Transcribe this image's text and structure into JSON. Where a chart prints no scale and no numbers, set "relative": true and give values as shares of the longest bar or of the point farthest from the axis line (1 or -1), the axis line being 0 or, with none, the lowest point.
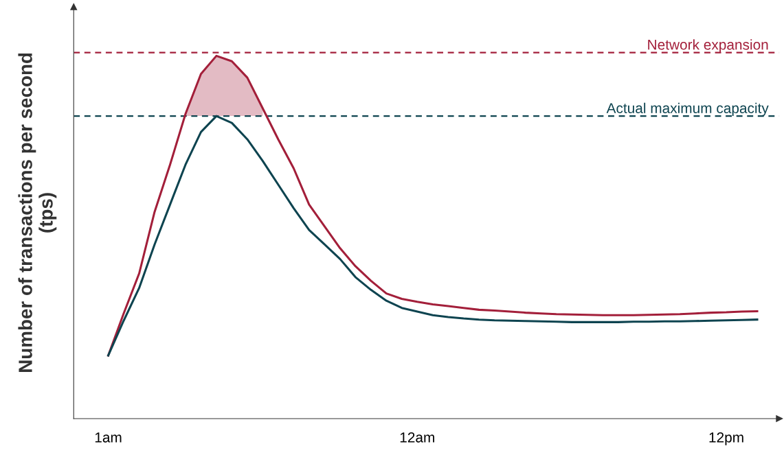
{
  "chart_data": {
    "type": "line",
    "relative": true,
    "ylabel": "Number of transactions per second\n(tps)",
    "categories": [
      "1am",
      null,
      null,
      null,
      null,
      null,
      null,
      null,
      null,
      null,
      null,
      null,
      null,
      null,
      null,
      null,
      null,
      null,
      null,
      null,
      "12am",
      null,
      null,
      null,
      null,
      null,
      null,
      null,
      null,
      null,
      null,
      null,
      null,
      null,
      null,
      null,
      null,
      null,
      null,
      null,
      "12pm",
      null,
      null
    ],
    "tick_labels": "x",
    "grid": false,
    "legend": false,
    "marker": "none",
    "line_style": "solid",
    "series": [
      {
        "color": "#a31f3a",
        "values": [
          0.174,
          0.29,
          0.4,
          0.57,
          0.7,
          0.84,
          0.95,
          1,
          0.985,
          0.94,
          0.855,
          0.77,
          0.69,
          0.59,
          0.53,
          0.47,
          0.42,
          0.38,
          0.345,
          0.33,
          0.322,
          0.315,
          0.31,
          0.305,
          0.3,
          0.298,
          0.295,
          0.292,
          0.29,
          0.288,
          0.287,
          0.286,
          0.285,
          0.285,
          0.285,
          0.286,
          0.287,
          0.288,
          0.29,
          0.292,
          0.293,
          0.295,
          0.296
        ],
        "lower": [
          null,
          null,
          null,
          null,
          null,
          0.834,
          0.834,
          0.834,
          0.834,
          0.834,
          0.834,
          null,
          null,
          null,
          null,
          null,
          null,
          null,
          null,
          null,
          null,
          null,
          null,
          null,
          null,
          null,
          null,
          null,
          null,
          null,
          null,
          null,
          null,
          null,
          null,
          null,
          null,
          null,
          null,
          null,
          null,
          null,
          null
        ],
        "upper": [
          null,
          null,
          null,
          null,
          null,
          0.84,
          0.95,
          1,
          0.985,
          0.94,
          0.855,
          null,
          null,
          null,
          null,
          null,
          null,
          null,
          null,
          null,
          null,
          null,
          null,
          null,
          null,
          null,
          null,
          null,
          null,
          null,
          null,
          null,
          null,
          null,
          null,
          null,
          null,
          null,
          null,
          null,
          null,
          null,
          null
        ]
      },
      {
        "color": "#0e4450",
        "values": [
          0.174,
          0.27,
          0.36,
          0.48,
          0.59,
          0.7,
          0.79,
          0.834,
          0.815,
          0.77,
          0.71,
          0.645,
          0.58,
          0.52,
          0.48,
          0.44,
          0.39,
          0.355,
          0.325,
          0.305,
          0.295,
          0.285,
          0.28,
          0.276,
          0.273,
          0.271,
          0.27,
          0.269,
          0.268,
          0.267,
          0.266,
          0.266,
          0.266,
          0.266,
          0.267,
          0.267,
          0.268,
          0.268,
          0.269,
          0.27,
          0.271,
          0.272,
          0.273
        ]
      }
    ],
    "ref_lines": [
      {
        "axis": "y",
        "value": 1.009,
        "label": "Network expansion",
        "color": "#a31f3a",
        "line_style": "dashed"
      },
      {
        "axis": "y",
        "value": 0.834,
        "label": "Actual maximum capacity",
        "color": "#0e4450",
        "line_style": "dashed"
      }
    ]
  }
}
